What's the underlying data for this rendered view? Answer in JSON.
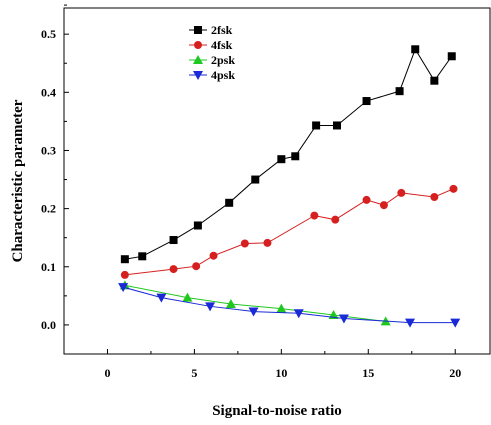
{
  "chart_data": {
    "type": "line",
    "title": "",
    "xlabel": "Signal-to-noise ratio",
    "ylabel": "Characteristic parameter",
    "xlim": [
      -2.5,
      22
    ],
    "ylim": [
      -0.05,
      0.545
    ],
    "xticks": [
      0,
      5,
      10,
      15,
      20
    ],
    "yticks": [
      0.0,
      0.1,
      0.2,
      0.3,
      0.4,
      0.5
    ],
    "xtick_labels": [
      "0",
      "5",
      "10",
      "15",
      "20"
    ],
    "ytick_labels": [
      "0.0",
      "0.1",
      "0.2",
      "0.3",
      "0.4",
      "0.5"
    ],
    "grid": false,
    "legend_position": "top-center",
    "series": [
      {
        "name": "2fsk",
        "color": "#000000",
        "marker": "square",
        "x": [
          1,
          2,
          3.8,
          5.2,
          7,
          8.5,
          10,
          10.8,
          12,
          13.2,
          14.9,
          16.8,
          17.7,
          18.8,
          19.8
        ],
        "y": [
          0.113,
          0.118,
          0.146,
          0.171,
          0.21,
          0.25,
          0.285,
          0.29,
          0.343,
          0.343,
          0.385,
          0.402,
          0.474,
          0.42,
          0.462
        ]
      },
      {
        "name": "4fsk",
        "color": "#d62020",
        "marker": "circle",
        "x": [
          1,
          3.8,
          5.1,
          6.1,
          7.9,
          9.2,
          11.9,
          13.1,
          14.9,
          15.9,
          16.9,
          18.8,
          19.9
        ],
        "y": [
          0.086,
          0.096,
          0.101,
          0.119,
          0.14,
          0.141,
          0.188,
          0.181,
          0.215,
          0.206,
          0.227,
          0.22,
          0.234
        ]
      },
      {
        "name": "2psk",
        "color": "#1fc81f",
        "marker": "triangle-up",
        "x": [
          1,
          4.6,
          7.1,
          10,
          13,
          16
        ],
        "y": [
          0.068,
          0.047,
          0.036,
          0.028,
          0.017,
          0.006
        ]
      },
      {
        "name": "4psk",
        "color": "#1a2ad6",
        "marker": "triangle-down",
        "x": [
          0.9,
          3.1,
          5.9,
          8.4,
          11,
          13.6,
          17.4,
          20
        ],
        "y": [
          0.065,
          0.047,
          0.032,
          0.023,
          0.02,
          0.011,
          0.004,
          0.004
        ]
      }
    ]
  }
}
